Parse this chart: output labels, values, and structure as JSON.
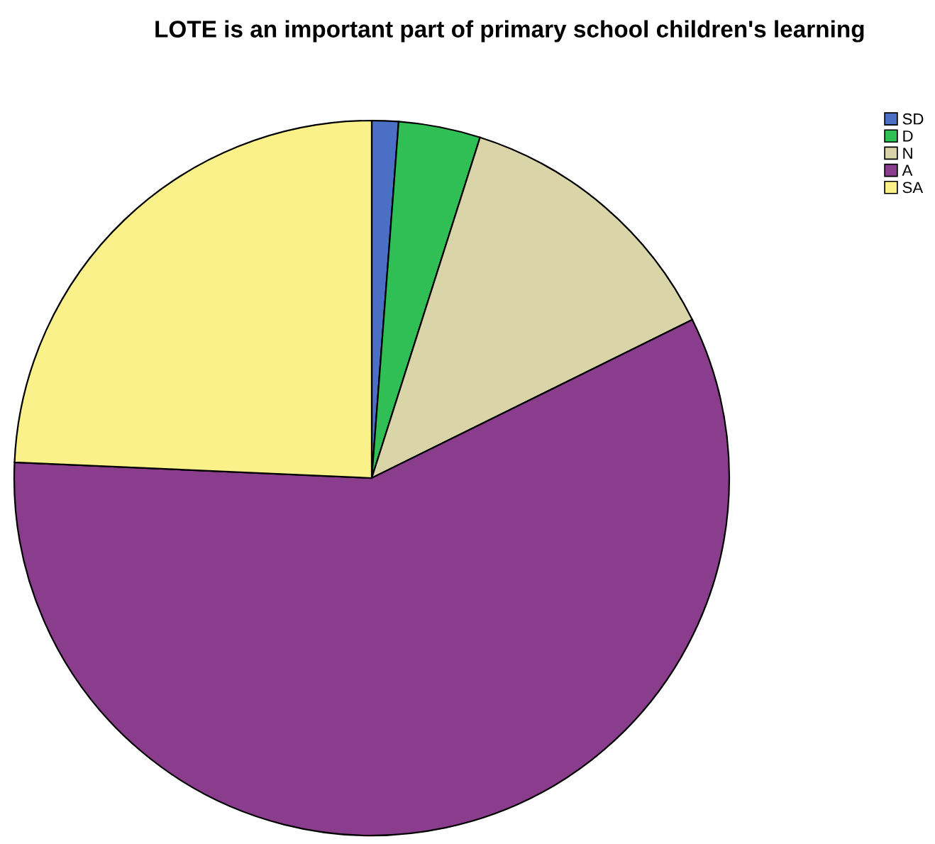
{
  "chart_data": {
    "type": "pie",
    "title": "LOTE is an important part of primary school children's learning",
    "categories": [
      "SD",
      "D",
      "N",
      "A",
      "SA"
    ],
    "values": [
      1.2,
      3.7,
      12.8,
      58.0,
      24.3
    ],
    "colors": [
      "#4a6fc4",
      "#2fbf55",
      "#d9d5a9",
      "#8a3d8c",
      "#fbf18a"
    ],
    "legend": "top right"
  }
}
